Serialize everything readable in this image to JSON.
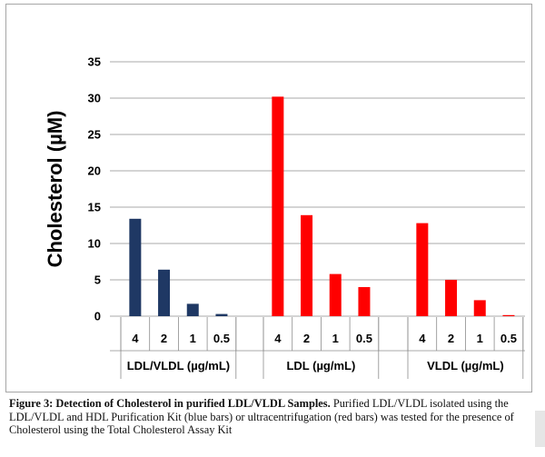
{
  "chart_data": {
    "type": "bar",
    "ylabel": "Cholesterol (µM)",
    "ylim": [
      0,
      35
    ],
    "yticks": [
      0,
      5,
      10,
      15,
      20,
      25,
      30,
      35
    ],
    "grid": true,
    "groups": [
      {
        "name": "LDL/VLDL (µg/mL)",
        "color": "#1f3864",
        "categories": [
          "4",
          "2",
          "1",
          "0.5"
        ],
        "values": [
          13.4,
          6.4,
          1.7,
          0.3
        ]
      },
      {
        "name": "LDL (µg/mL)",
        "color": "#ff0000",
        "categories": [
          "4",
          "2",
          "1",
          "0.5"
        ],
        "values": [
          30.2,
          13.9,
          5.8,
          4.0
        ]
      },
      {
        "name": "VLDL (µg/mL)",
        "color": "#ff0000",
        "categories": [
          "4",
          "2",
          "1",
          "0.5"
        ],
        "values": [
          12.8,
          5.0,
          2.2,
          0.15
        ]
      }
    ]
  },
  "caption": {
    "title": "Figure 3: Detection of Cholesterol in purified LDL/VLDL Samples.",
    "body": "Purified LDL/VLDL isolated using the LDL/VLDL and HDL Purification Kit (blue bars) or ultracentrifugation (red bars) was tested for the presence of Cholesterol using the Total Cholesterol Assay Kit"
  }
}
